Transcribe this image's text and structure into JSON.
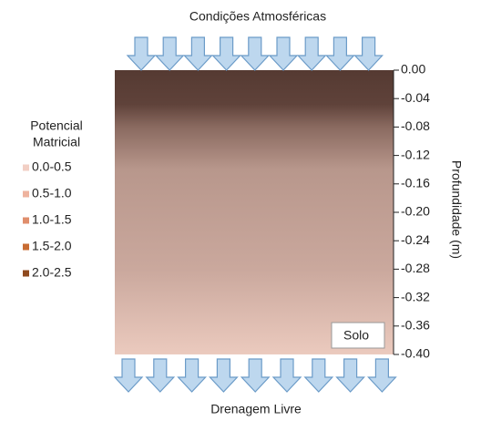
{
  "header": {
    "title": "Condições Atmosféricas"
  },
  "footer": {
    "label": "Drenagem Livre"
  },
  "legend": {
    "title": [
      "Potencial",
      "Matricial"
    ],
    "items": [
      {
        "label": "0.0-0.5",
        "color": "#f2cfc4"
      },
      {
        "label": "0.5-1.0",
        "color": "#eeb39e"
      },
      {
        "label": "1.0-1.5",
        "color": "#e08e6c"
      },
      {
        "label": "1.5-2.0",
        "color": "#c86c33"
      },
      {
        "label": "2.0-2.5",
        "color": "#8f4a1f"
      }
    ]
  },
  "axis": {
    "label": "Profundidade (m)",
    "lim": [
      0,
      -0.4
    ],
    "ticks": [
      {
        "value": 0,
        "label": "0.00"
      },
      {
        "value": -0.04,
        "label": "-0.04"
      },
      {
        "value": -0.08,
        "label": "-0.08"
      },
      {
        "value": -0.12,
        "label": "-0.12"
      },
      {
        "value": -0.16,
        "label": "-0.16"
      },
      {
        "value": -0.2,
        "label": "-0.20"
      },
      {
        "value": -0.24,
        "label": "-0.24"
      },
      {
        "value": -0.28,
        "label": "-0.28"
      },
      {
        "value": -0.32,
        "label": "-0.32"
      },
      {
        "value": -0.36,
        "label": "-0.36"
      },
      {
        "value": -0.4,
        "label": "-0.40"
      }
    ]
  },
  "box_label": "Solo"
}
